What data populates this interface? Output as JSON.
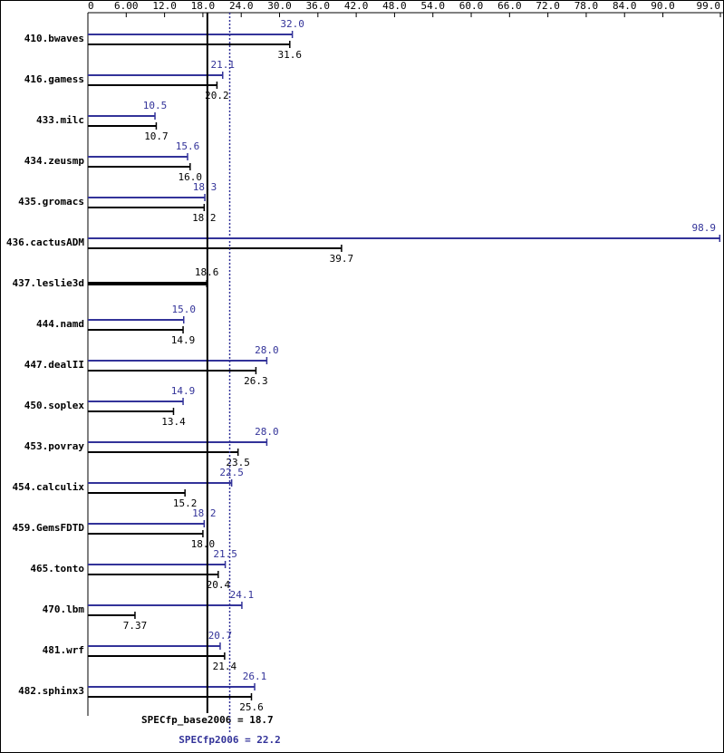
{
  "chart_data": {
    "type": "bar",
    "orientation": "horizontal",
    "categories": [
      "410.bwaves",
      "416.gamess",
      "433.milc",
      "434.zeusmp",
      "435.gromacs",
      "436.cactusADM",
      "437.leslie3d",
      "444.namd",
      "447.dealII",
      "450.soplex",
      "453.povray",
      "454.calculix",
      "459.GemsFDTD",
      "465.tonto",
      "470.lbm",
      "481.wrf",
      "482.sphinx3"
    ],
    "series": [
      {
        "color": "#333399",
        "values": [
          32.0,
          21.1,
          10.5,
          15.6,
          18.3,
          98.9,
          null,
          15.0,
          28.0,
          14.9,
          28.0,
          22.5,
          18.2,
          21.5,
          24.1,
          20.7,
          26.1
        ],
        "value_labels": [
          "32.0",
          "21.1",
          "10.5",
          "15.6",
          "18.3",
          "98.9",
          null,
          "15.0",
          "28.0",
          "14.9",
          "28.0",
          "22.5",
          "18.2",
          "21.5",
          "24.1",
          "20.7",
          "26.1"
        ]
      },
      {
        "color": "#000000",
        "values": [
          31.6,
          20.2,
          10.7,
          16.0,
          18.2,
          39.7,
          18.6,
          14.9,
          26.3,
          13.4,
          23.5,
          15.2,
          18.0,
          20.4,
          7.37,
          21.4,
          25.6
        ],
        "value_labels": [
          "31.6",
          "20.2",
          "10.7",
          "16.0",
          "18.2",
          "39.7",
          "18.6",
          "14.9",
          "26.3",
          "13.4",
          "23.5",
          "15.2",
          "18.0",
          "20.4",
          "7.37",
          "21.4",
          "25.6"
        ]
      }
    ],
    "xlim": [
      0,
      99
    ],
    "xticks": [
      0,
      {
        "value": 6,
        "label": "6.00"
      },
      {
        "value": 12,
        "label": "12.0"
      },
      {
        "value": 18,
        "label": "18.0"
      },
      {
        "value": 24,
        "label": "24.0"
      },
      {
        "value": 30,
        "label": "30.0"
      },
      {
        "value": 36,
        "label": "36.0"
      },
      {
        "value": 42,
        "label": "42.0"
      },
      {
        "value": 48,
        "label": "48.0"
      },
      {
        "value": 54,
        "label": "54.0"
      },
      {
        "value": 60,
        "label": "60.0"
      },
      {
        "value": 66,
        "label": "66.0"
      },
      {
        "value": 72,
        "label": "72.0"
      },
      {
        "value": 78,
        "label": "78.0"
      },
      {
        "value": 84,
        "label": "84.0"
      },
      {
        "value": 90,
        "label": "90.0"
      },
      {
        "value": 99,
        "label": "99.0"
      }
    ],
    "reference_lines": [
      {
        "label": "SPECfp_base2006 = 18.7",
        "value": 18.7,
        "color": "#000000",
        "style": "solid"
      },
      {
        "label": "SPECfp2006 = 22.2",
        "value": 22.2,
        "color": "#333399",
        "style": "dotted"
      }
    ]
  }
}
